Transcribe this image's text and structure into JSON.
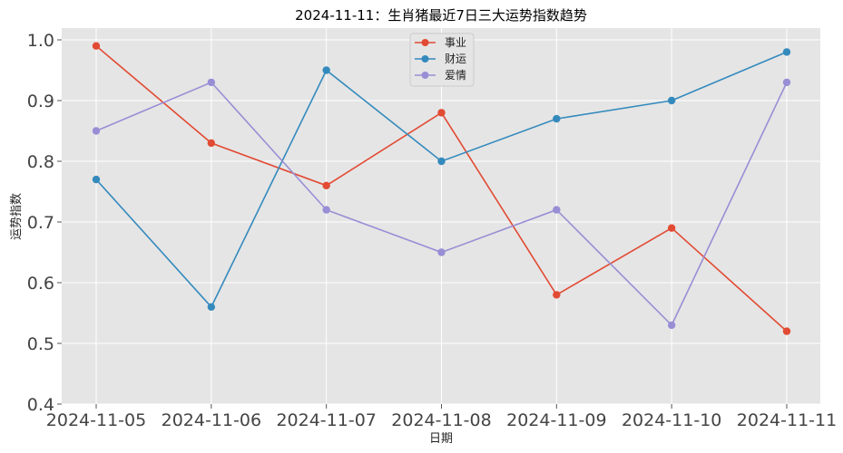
{
  "chart_data": {
    "type": "line",
    "title": "2024-11-11：生肖猪最近7日三大运势指数趋势",
    "xlabel": "日期",
    "ylabel": "运势指数",
    "categories": [
      "2024-11-05",
      "2024-11-06",
      "2024-11-07",
      "2024-11-08",
      "2024-11-09",
      "2024-11-10",
      "2024-11-11"
    ],
    "ylim": [
      0.4,
      1.0
    ],
    "yticks": [
      "0.4",
      "0.5",
      "0.6",
      "0.7",
      "0.8",
      "0.9",
      "1.0"
    ],
    "grid": true,
    "legend_position": "top-center",
    "series": [
      {
        "name": "事业",
        "color": "#E24A33",
        "values": [
          0.99,
          0.83,
          0.76,
          0.88,
          0.58,
          0.69,
          0.52
        ]
      },
      {
        "name": "财运",
        "color": "#348ABD",
        "values": [
          0.77,
          0.56,
          0.95,
          0.8,
          0.87,
          0.9,
          0.98
        ]
      },
      {
        "name": "爱情",
        "color": "#988ED5",
        "values": [
          0.85,
          0.93,
          0.72,
          0.65,
          0.72,
          0.53,
          0.93
        ]
      }
    ]
  }
}
